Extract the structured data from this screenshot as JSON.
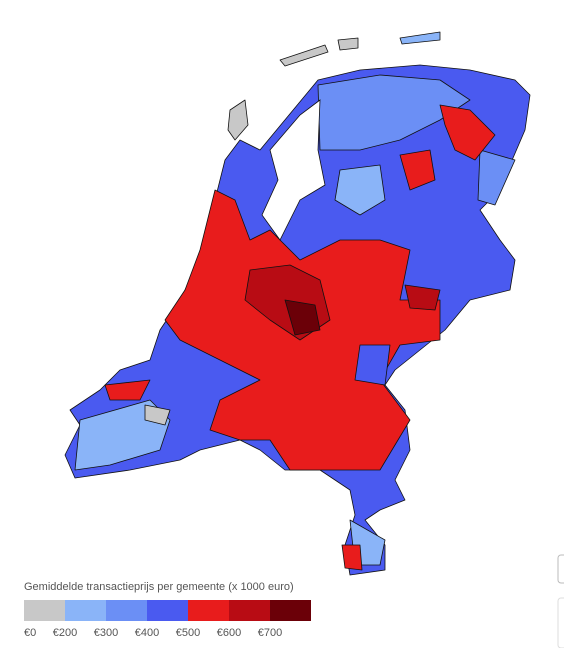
{
  "legend": {
    "title": "Gemiddelde transactieprijs per gemeente (x 1000 euro)",
    "colors": [
      "#c8c8c8",
      "#8ab4f8",
      "#6b8ff5",
      "#4a5af0",
      "#e81c1c",
      "#b80c14",
      "#6b0008"
    ],
    "ticks": [
      {
        "value": 0,
        "label": "€0"
      },
      {
        "value": 200,
        "label": "€200"
      },
      {
        "value": 300,
        "label": "€300"
      },
      {
        "value": 400,
        "label": "€400"
      },
      {
        "value": 500,
        "label": "€500"
      },
      {
        "value": 600,
        "label": "€600"
      },
      {
        "value": 700,
        "label": "€700"
      }
    ]
  }
}
